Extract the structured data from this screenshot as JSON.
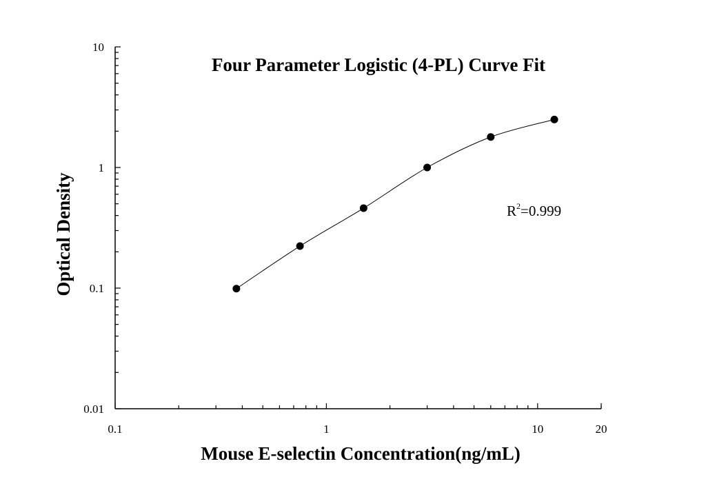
{
  "chart_data": {
    "type": "scatter",
    "title": "Four Parameter Logistic (4-PL) Curve Fit",
    "xlabel": "Mouse E-selectin Concentration(ng/mL)",
    "ylabel": "Optical Density",
    "xscale": "log",
    "yscale": "log",
    "xlim": [
      0.1,
      20
    ],
    "ylim": [
      0.01,
      10
    ],
    "xticks": [
      "0.1",
      "1",
      "10",
      "20"
    ],
    "yticks": [
      "0.01",
      "0.1",
      "1",
      "10"
    ],
    "grid": false,
    "fit": "4-PL curve",
    "annotation": {
      "base": "R",
      "sup": "2",
      "rest": "=0.999"
    },
    "x": [
      0.375,
      0.75,
      1.5,
      3,
      6,
      12
    ],
    "y": [
      0.099,
      0.223,
      0.46,
      1.0,
      1.79,
      2.5
    ],
    "marker_color": "#000000",
    "line_color": "#000000"
  }
}
